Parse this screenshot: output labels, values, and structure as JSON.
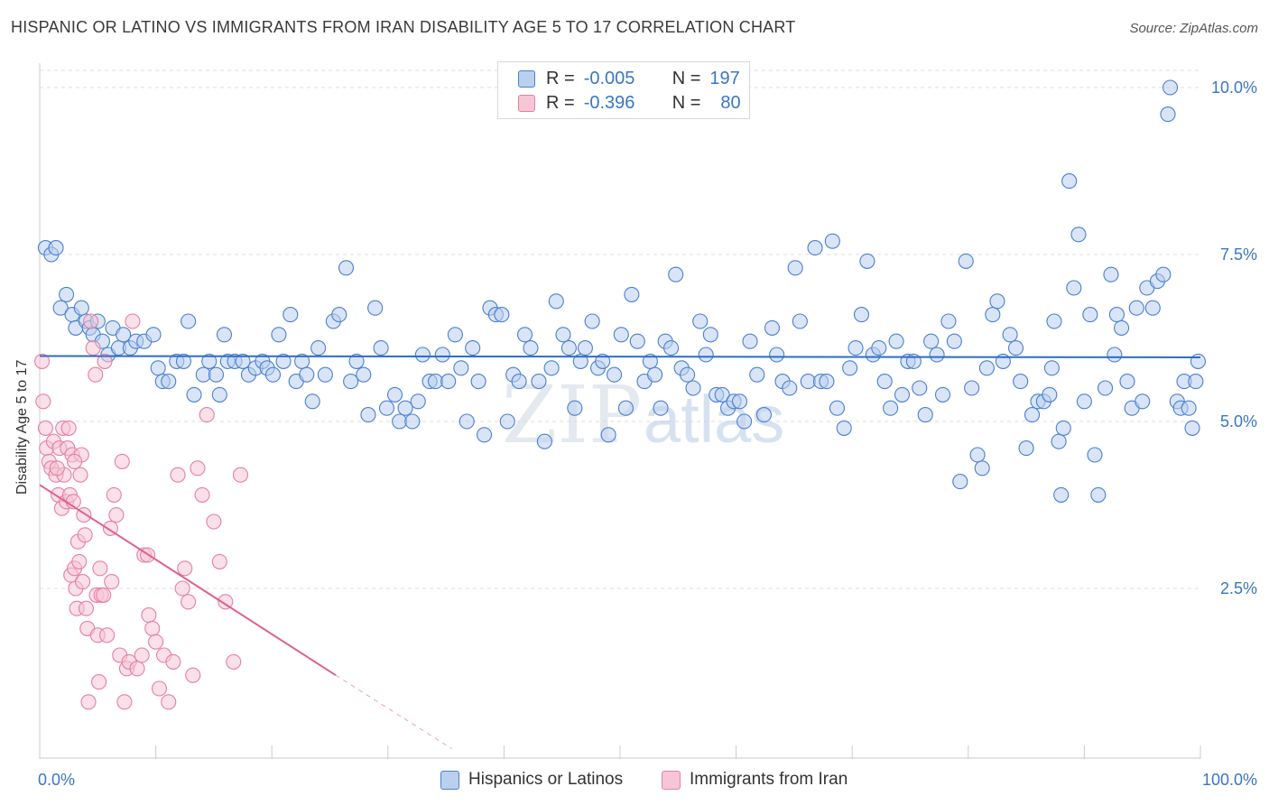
{
  "header": {
    "title": "HISPANIC OR LATINO VS IMMIGRANTS FROM IRAN DISABILITY AGE 5 TO 17 CORRELATION CHART",
    "source": "Source: ZipAtlas.com"
  },
  "watermark": {
    "zip": "ZIP",
    "atlas": "atlas"
  },
  "colors": {
    "blue": "#4a7fd0",
    "blue_fill": "#b9d0ef",
    "blue_line": "#2e6cc8",
    "pink": "#e57fa2",
    "pink_fill": "#f6c6d5",
    "pink_line": "#e0608c",
    "tick_label": "#3a76c4"
  },
  "legend": {
    "rows": [
      {
        "r_key": "R =",
        "r_val": "-0.005",
        "n_key": "N =",
        "n_val": "197"
      },
      {
        "r_key": "R =",
        "r_val": "-0.396",
        "n_key": "N =",
        "n_val": "80"
      }
    ]
  },
  "bottom_legend": [
    "Hispanics or Latinos",
    "Immigrants from Iran"
  ],
  "chart_data": {
    "type": "scatter",
    "title": "HISPANIC OR LATINO VS IMMIGRANTS FROM IRAN DISABILITY AGE 5 TO 17 CORRELATION CHART",
    "xlabel": "",
    "ylabel": "Disability Age 5 to 17",
    "xlim": [
      0,
      100
    ],
    "ylim": [
      0,
      10.5
    ],
    "x_tick_labels": [
      "0.0%",
      "100.0%"
    ],
    "y_ticks": [
      2.5,
      5.0,
      7.5,
      10.0
    ],
    "y_tick_labels": [
      "2.5%",
      "5.0%",
      "7.5%",
      "10.0%"
    ],
    "grid": "horizontal dashed",
    "legend_position": "top-center",
    "series": [
      {
        "name": "Hispanics or Latinos",
        "R": -0.005,
        "N": 197,
        "trend": {
          "x0": 0,
          "y0": 5.98,
          "x1": 100,
          "y1": 5.96
        },
        "points": [
          [
            0.5,
            7.6
          ],
          [
            1.0,
            7.5
          ],
          [
            1.4,
            7.6
          ],
          [
            1.8,
            6.7
          ],
          [
            2.3,
            6.9
          ],
          [
            2.8,
            6.6
          ],
          [
            3.1,
            6.4
          ],
          [
            3.6,
            6.7
          ],
          [
            4.0,
            6.5
          ],
          [
            4.3,
            6.4
          ],
          [
            4.6,
            6.3
          ],
          [
            5.0,
            6.5
          ],
          [
            5.4,
            6.2
          ],
          [
            5.9,
            6.0
          ],
          [
            6.3,
            6.4
          ],
          [
            6.8,
            6.1
          ],
          [
            7.2,
            6.3
          ],
          [
            7.8,
            6.1
          ],
          [
            8.3,
            6.2
          ],
          [
            9.0,
            6.2
          ],
          [
            9.8,
            6.3
          ],
          [
            10.2,
            5.8
          ],
          [
            10.6,
            5.6
          ],
          [
            11.1,
            5.6
          ],
          [
            11.8,
            5.9
          ],
          [
            12.4,
            5.9
          ],
          [
            12.8,
            6.5
          ],
          [
            13.3,
            5.4
          ],
          [
            14.1,
            5.7
          ],
          [
            14.6,
            5.9
          ],
          [
            15.2,
            5.7
          ],
          [
            15.5,
            5.4
          ],
          [
            15.9,
            6.3
          ],
          [
            16.2,
            5.9
          ],
          [
            16.8,
            5.9
          ],
          [
            17.5,
            5.9
          ],
          [
            18.0,
            5.7
          ],
          [
            18.6,
            5.8
          ],
          [
            19.2,
            5.9
          ],
          [
            19.6,
            5.8
          ],
          [
            20.1,
            5.7
          ],
          [
            20.6,
            6.3
          ],
          [
            21.0,
            5.9
          ],
          [
            21.6,
            6.6
          ],
          [
            22.1,
            5.6
          ],
          [
            22.6,
            5.9
          ],
          [
            23.0,
            5.7
          ],
          [
            23.5,
            5.3
          ],
          [
            24.0,
            6.1
          ],
          [
            24.6,
            5.7
          ],
          [
            25.3,
            6.5
          ],
          [
            25.8,
            6.6
          ],
          [
            26.4,
            7.3
          ],
          [
            26.8,
            5.6
          ],
          [
            27.3,
            5.9
          ],
          [
            27.9,
            5.7
          ],
          [
            28.3,
            5.1
          ],
          [
            28.9,
            6.7
          ],
          [
            29.4,
            6.1
          ],
          [
            29.9,
            5.2
          ],
          [
            30.6,
            5.4
          ],
          [
            31.0,
            5.0
          ],
          [
            31.5,
            5.2
          ],
          [
            32.1,
            5.0
          ],
          [
            32.6,
            5.3
          ],
          [
            33.0,
            6.0
          ],
          [
            33.6,
            5.6
          ],
          [
            34.1,
            5.6
          ],
          [
            34.7,
            6.0
          ],
          [
            35.2,
            5.6
          ],
          [
            35.8,
            6.3
          ],
          [
            36.3,
            5.8
          ],
          [
            36.8,
            5.0
          ],
          [
            37.3,
            6.1
          ],
          [
            37.8,
            5.6
          ],
          [
            38.3,
            4.8
          ],
          [
            38.8,
            6.7
          ],
          [
            39.3,
            6.6
          ],
          [
            39.8,
            6.6
          ],
          [
            40.3,
            5.0
          ],
          [
            40.8,
            5.7
          ],
          [
            41.3,
            5.6
          ],
          [
            41.8,
            6.3
          ],
          [
            42.3,
            6.1
          ],
          [
            43.0,
            5.6
          ],
          [
            43.5,
            4.7
          ],
          [
            44.1,
            5.8
          ],
          [
            44.5,
            6.8
          ],
          [
            45.1,
            6.3
          ],
          [
            45.6,
            6.1
          ],
          [
            46.1,
            5.2
          ],
          [
            46.6,
            5.9
          ],
          [
            47.0,
            6.1
          ],
          [
            47.6,
            6.5
          ],
          [
            48.1,
            5.8
          ],
          [
            48.5,
            5.9
          ],
          [
            49.0,
            4.8
          ],
          [
            49.5,
            5.7
          ],
          [
            50.1,
            6.3
          ],
          [
            50.5,
            5.2
          ],
          [
            51.0,
            6.9
          ],
          [
            51.5,
            6.2
          ],
          [
            52.1,
            5.6
          ],
          [
            52.6,
            5.9
          ],
          [
            53.0,
            5.7
          ],
          [
            53.5,
            5.2
          ],
          [
            53.9,
            6.2
          ],
          [
            54.4,
            6.1
          ],
          [
            54.8,
            7.2
          ],
          [
            55.3,
            5.8
          ],
          [
            55.8,
            5.7
          ],
          [
            56.3,
            5.5
          ],
          [
            56.9,
            6.5
          ],
          [
            57.4,
            6.0
          ],
          [
            57.8,
            6.3
          ],
          [
            58.3,
            5.4
          ],
          [
            58.8,
            5.4
          ],
          [
            59.3,
            5.2
          ],
          [
            59.8,
            5.3
          ],
          [
            60.3,
            5.3
          ],
          [
            60.7,
            5.0
          ],
          [
            61.2,
            6.2
          ],
          [
            61.8,
            5.7
          ],
          [
            62.4,
            5.1
          ],
          [
            63.1,
            6.4
          ],
          [
            63.5,
            6.0
          ],
          [
            64.0,
            5.6
          ],
          [
            64.6,
            5.5
          ],
          [
            65.1,
            7.3
          ],
          [
            65.5,
            6.5
          ],
          [
            66.2,
            5.6
          ],
          [
            66.8,
            7.6
          ],
          [
            67.3,
            5.6
          ],
          [
            67.8,
            5.6
          ],
          [
            68.3,
            7.7
          ],
          [
            68.7,
            5.2
          ],
          [
            69.3,
            4.9
          ],
          [
            69.8,
            5.8
          ],
          [
            70.3,
            6.1
          ],
          [
            70.8,
            6.6
          ],
          [
            71.3,
            7.4
          ],
          [
            71.8,
            6.0
          ],
          [
            72.3,
            6.1
          ],
          [
            72.8,
            5.6
          ],
          [
            73.3,
            5.2
          ],
          [
            73.8,
            6.2
          ],
          [
            74.3,
            5.4
          ],
          [
            74.8,
            5.9
          ],
          [
            75.3,
            5.9
          ],
          [
            75.8,
            5.5
          ],
          [
            76.3,
            5.1
          ],
          [
            76.8,
            6.2
          ],
          [
            77.3,
            6.0
          ],
          [
            77.8,
            5.4
          ],
          [
            78.3,
            6.5
          ],
          [
            78.8,
            6.2
          ],
          [
            79.3,
            4.1
          ],
          [
            79.8,
            7.4
          ],
          [
            80.3,
            5.5
          ],
          [
            80.8,
            4.5
          ],
          [
            81.2,
            4.3
          ],
          [
            81.6,
            5.8
          ],
          [
            82.1,
            6.6
          ],
          [
            82.5,
            6.8
          ],
          [
            83.0,
            5.9
          ],
          [
            83.6,
            6.3
          ],
          [
            84.1,
            6.1
          ],
          [
            84.5,
            5.6
          ],
          [
            85.0,
            4.6
          ],
          [
            85.5,
            5.1
          ],
          [
            86.0,
            5.3
          ],
          [
            86.5,
            5.3
          ],
          [
            87.0,
            5.4
          ],
          [
            87.4,
            6.5
          ],
          [
            87.8,
            4.7
          ],
          [
            88.2,
            4.9
          ],
          [
            88.7,
            8.6
          ],
          [
            89.1,
            7.0
          ],
          [
            89.5,
            7.8
          ],
          [
            90.0,
            5.3
          ],
          [
            90.5,
            6.6
          ],
          [
            90.9,
            4.5
          ],
          [
            91.2,
            3.9
          ],
          [
            91.8,
            5.5
          ],
          [
            92.3,
            7.2
          ],
          [
            92.8,
            6.6
          ],
          [
            93.2,
            6.4
          ],
          [
            93.7,
            5.6
          ],
          [
            94.1,
            5.2
          ],
          [
            94.5,
            6.7
          ],
          [
            95.0,
            5.3
          ],
          [
            95.4,
            7.0
          ],
          [
            95.9,
            6.7
          ],
          [
            96.3,
            7.1
          ],
          [
            96.8,
            7.2
          ],
          [
            97.4,
            10.0
          ],
          [
            97.2,
            9.6
          ],
          [
            98.0,
            5.3
          ],
          [
            98.3,
            5.2
          ],
          [
            98.6,
            5.6
          ],
          [
            99.0,
            5.2
          ],
          [
            99.3,
            4.9
          ],
          [
            99.6,
            5.6
          ],
          [
            99.8,
            5.9
          ],
          [
            92.6,
            6.0
          ],
          [
            88.0,
            3.9
          ],
          [
            87.2,
            5.8
          ]
        ]
      },
      {
        "name": "Immigrants from Iran",
        "R": -0.396,
        "N": 80,
        "trend": {
          "x0": 0,
          "y0": 4.05,
          "x1": 25.5,
          "y1": 1.2,
          "dash_to_x": 35.5,
          "dash_to_y": 0.1
        },
        "points": [
          [
            0.2,
            5.9
          ],
          [
            0.3,
            5.3
          ],
          [
            0.5,
            4.9
          ],
          [
            0.6,
            4.6
          ],
          [
            0.8,
            4.4
          ],
          [
            1.0,
            4.3
          ],
          [
            1.2,
            4.7
          ],
          [
            1.4,
            4.2
          ],
          [
            1.6,
            3.9
          ],
          [
            1.7,
            4.6
          ],
          [
            1.9,
            3.7
          ],
          [
            2.0,
            4.9
          ],
          [
            2.1,
            4.2
          ],
          [
            2.3,
            3.8
          ],
          [
            2.4,
            4.6
          ],
          [
            2.5,
            4.9
          ],
          [
            2.6,
            3.9
          ],
          [
            2.7,
            2.7
          ],
          [
            2.8,
            4.5
          ],
          [
            2.9,
            3.8
          ],
          [
            3.0,
            2.8
          ],
          [
            3.1,
            2.5
          ],
          [
            3.2,
            2.2
          ],
          [
            3.3,
            3.2
          ],
          [
            3.4,
            2.9
          ],
          [
            3.5,
            4.2
          ],
          [
            3.6,
            4.5
          ],
          [
            3.7,
            2.6
          ],
          [
            3.8,
            3.6
          ],
          [
            3.9,
            3.3
          ],
          [
            4.0,
            2.2
          ],
          [
            4.1,
            1.9
          ],
          [
            4.2,
            0.8
          ],
          [
            4.4,
            6.5
          ],
          [
            4.6,
            6.1
          ],
          [
            4.8,
            5.7
          ],
          [
            4.9,
            2.4
          ],
          [
            5.0,
            1.8
          ],
          [
            5.1,
            1.1
          ],
          [
            5.2,
            2.8
          ],
          [
            5.3,
            2.4
          ],
          [
            5.5,
            2.4
          ],
          [
            5.6,
            5.9
          ],
          [
            5.8,
            1.8
          ],
          [
            6.1,
            3.4
          ],
          [
            6.4,
            3.9
          ],
          [
            6.6,
            3.6
          ],
          [
            6.9,
            1.5
          ],
          [
            7.1,
            4.4
          ],
          [
            7.3,
            0.8
          ],
          [
            7.5,
            1.3
          ],
          [
            7.7,
            1.4
          ],
          [
            8.0,
            6.5
          ],
          [
            8.4,
            1.3
          ],
          [
            8.8,
            1.5
          ],
          [
            9.0,
            3.0
          ],
          [
            9.4,
            2.1
          ],
          [
            9.7,
            1.9
          ],
          [
            10.0,
            1.7
          ],
          [
            10.3,
            1.0
          ],
          [
            10.7,
            1.5
          ],
          [
            11.1,
            0.8
          ],
          [
            11.5,
            1.4
          ],
          [
            11.9,
            4.2
          ],
          [
            12.3,
            2.5
          ],
          [
            12.8,
            2.3
          ],
          [
            13.2,
            1.2
          ],
          [
            13.6,
            4.3
          ],
          [
            14.0,
            3.9
          ],
          [
            14.4,
            5.1
          ],
          [
            15.0,
            3.5
          ],
          [
            15.5,
            2.9
          ],
          [
            16.0,
            2.3
          ],
          [
            16.7,
            1.4
          ],
          [
            17.3,
            4.2
          ],
          [
            12.5,
            2.8
          ],
          [
            9.3,
            3.0
          ],
          [
            6.2,
            2.6
          ],
          [
            3.0,
            4.4
          ],
          [
            1.5,
            4.3
          ]
        ]
      }
    ]
  }
}
